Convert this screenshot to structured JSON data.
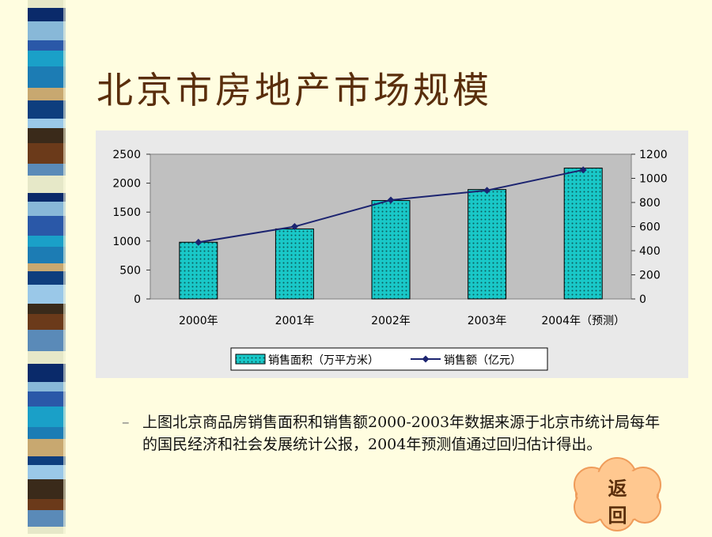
{
  "slide": {
    "title": "北京市房地产市场规模",
    "caption": "上图北京商品房销售面积和销售额2000-2003年数据来源于北京市统计局每年的国民经济和社会发展统计公报，2004年预测值通过回归估计得出。",
    "bullet": "–",
    "back_button_label": "返回"
  },
  "colors": {
    "background": "#fffde0",
    "bar_fill": "#19c8c8",
    "bar_dot": "#0b5c5c",
    "line": "#1c2470",
    "plot_area": "#c0c0c0",
    "title": "#5a2e0c",
    "cloud": "#ffc890"
  },
  "chart_data": {
    "type": "bar",
    "categories": [
      "2000年",
      "2001年",
      "2002年",
      "2003年",
      "2004年（预测）"
    ],
    "series": [
      {
        "name": "销售面积（万平方米）",
        "type": "bar",
        "axis": "left",
        "values": [
          980,
          1210,
          1700,
          1890,
          2260
        ]
      },
      {
        "name": "销售额（亿元）",
        "type": "line",
        "axis": "right",
        "values": [
          470,
          600,
          820,
          900,
          1070
        ]
      }
    ],
    "y_left": {
      "ylim": [
        0,
        2500
      ],
      "ticks": [
        0,
        500,
        1000,
        1500,
        2000,
        2500
      ]
    },
    "y_right": {
      "ylim": [
        0,
        1200
      ],
      "ticks": [
        0,
        200,
        400,
        600,
        800,
        1000,
        1200
      ]
    },
    "grid": false,
    "legend": "bottom"
  }
}
